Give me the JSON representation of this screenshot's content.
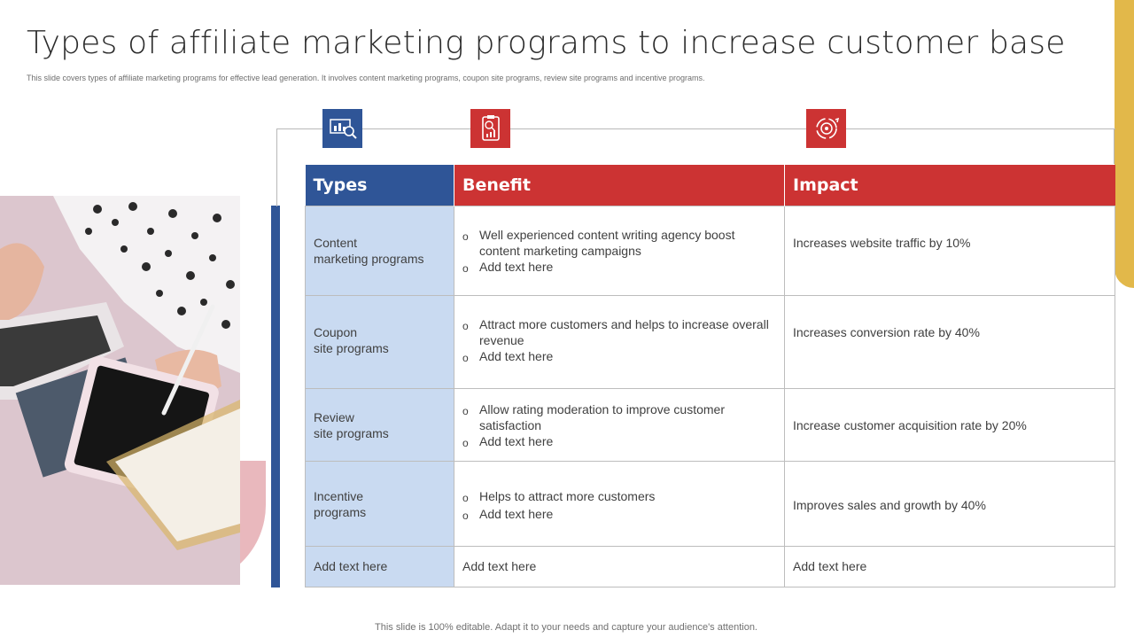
{
  "title": "Types of affiliate marketing programs to increase customer base",
  "subtitle": "This slide covers types of affiliate marketing programs for effective lead generation. It involves content marketing programs, coupon site programs, review site programs and incentive programs.",
  "icons": [
    "analytics-search-icon",
    "report-chart-icon",
    "target-cycle-icon"
  ],
  "colors": {
    "blue": "#2f5597",
    "red": "#cc3333",
    "light_blue": "#c9daf1",
    "gold": "#e2b84a"
  },
  "table": {
    "headers": {
      "types": "Types",
      "benefit": "Benefit",
      "impact": "Impact"
    },
    "rows": [
      {
        "type": [
          "Content",
          "marketing programs"
        ],
        "benefits": [
          "Well experienced content writing agency boost content marketing campaigns",
          "Add text here"
        ],
        "impact": "Increases website traffic by 10%"
      },
      {
        "type": [
          "Coupon",
          "site programs"
        ],
        "benefits": [
          "Attract more customers and helps to increase overall revenue",
          "Add text here"
        ],
        "impact": "Increases conversion rate by 40%"
      },
      {
        "type": [
          "Review",
          "site programs"
        ],
        "benefits": [
          "Allow rating moderation to improve customer satisfaction",
          "Add text here"
        ],
        "impact": "Increase customer acquisition rate by 20%"
      },
      {
        "type": [
          "Incentive",
          "programs"
        ],
        "benefits": [
          "Helps to attract more customers",
          "Add text here"
        ],
        "impact": "Improves sales and growth by 40%"
      }
    ],
    "footer_row": {
      "type": "Add text here",
      "benefit": "Add text here",
      "impact": "Add text here"
    }
  },
  "footer": "This slide is 100% editable. Adapt it to your needs and capture your audience's attention."
}
